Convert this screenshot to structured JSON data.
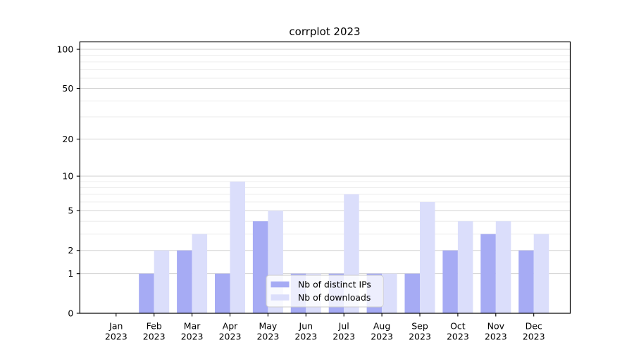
{
  "chart_data": {
    "type": "bar",
    "title": "corrplot 2023",
    "categories": [
      {
        "month": "Jan",
        "year": "2023"
      },
      {
        "month": "Feb",
        "year": "2023"
      },
      {
        "month": "Mar",
        "year": "2023"
      },
      {
        "month": "Apr",
        "year": "2023"
      },
      {
        "month": "May",
        "year": "2023"
      },
      {
        "month": "Jun",
        "year": "2023"
      },
      {
        "month": "Jul",
        "year": "2023"
      },
      {
        "month": "Aug",
        "year": "2023"
      },
      {
        "month": "Sep",
        "year": "2023"
      },
      {
        "month": "Oct",
        "year": "2023"
      },
      {
        "month": "Nov",
        "year": "2023"
      },
      {
        "month": "Dec",
        "year": "2023"
      }
    ],
    "series": [
      {
        "name": "Nb of distinct IPs",
        "color": "#a6abf4",
        "values": [
          0,
          1,
          2,
          1,
          4,
          1,
          1,
          1,
          1,
          2,
          3,
          2
        ]
      },
      {
        "name": "Nb of downloads",
        "color": "#dbdefb",
        "values": [
          0,
          2,
          3,
          9,
          5,
          1,
          7,
          1,
          6,
          4,
          4,
          3
        ]
      }
    ],
    "xlabel": "",
    "ylabel": "",
    "y_axis": {
      "scale": "log1p",
      "major_ticks": [
        0,
        1,
        2,
        5,
        10,
        20,
        50,
        100
      ],
      "minor_ticks": [
        3,
        4,
        6,
        7,
        8,
        9,
        30,
        40,
        60,
        70,
        80,
        90
      ],
      "ylim": [
        0,
        114
      ]
    },
    "legend": {
      "position": "lower center",
      "entries": [
        "Nb of distinct IPs",
        "Nb of downloads"
      ]
    },
    "grid": "on",
    "colors": {
      "grid_major": "#d2d2d2",
      "grid_minor": "#ebebeb",
      "axis": "#000000",
      "text": "#000000",
      "background": "#ffffff",
      "legend_background": "#ffffff",
      "legend_border": "#cccccc"
    }
  }
}
